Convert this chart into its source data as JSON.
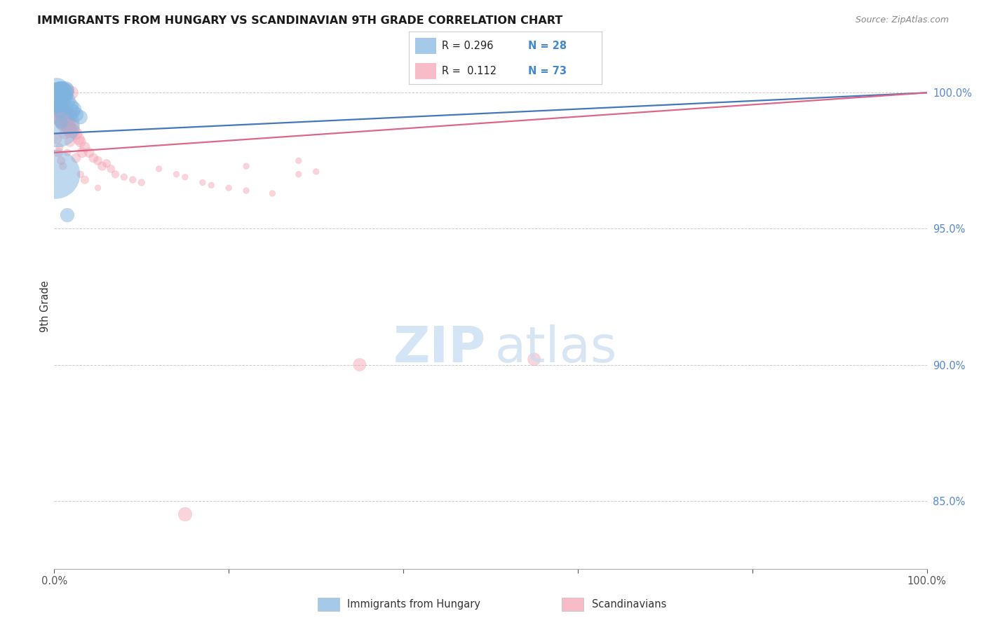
{
  "title": "IMMIGRANTS FROM HUNGARY VS SCANDINAVIAN 9TH GRADE CORRELATION CHART",
  "source": "Source: ZipAtlas.com",
  "ylabel": "9th Grade",
  "right_yticks": [
    85.0,
    90.0,
    95.0,
    100.0
  ],
  "xmin": 0.0,
  "xmax": 100.0,
  "ymin": 82.5,
  "ymax": 101.8,
  "blue_color": "#7EB3E0",
  "pink_color": "#F4A0B0",
  "blue_line_color": "#4477BB",
  "pink_line_color": "#DD6688",
  "blue_line_x": [
    0.0,
    100.0
  ],
  "blue_line_y": [
    98.5,
    100.0
  ],
  "pink_line_x": [
    0.0,
    100.0
  ],
  "pink_line_y": [
    97.8,
    100.0
  ],
  "hungary_points": [
    [
      0.2,
      99.8
    ],
    [
      0.3,
      100.1
    ],
    [
      0.4,
      100.0
    ],
    [
      0.5,
      99.9
    ],
    [
      0.6,
      100.0
    ],
    [
      0.7,
      100.1
    ],
    [
      0.8,
      100.0
    ],
    [
      0.9,
      100.1
    ],
    [
      1.0,
      99.9
    ],
    [
      1.1,
      99.8
    ],
    [
      1.2,
      100.0
    ],
    [
      1.3,
      100.1
    ],
    [
      1.5,
      99.7
    ],
    [
      1.8,
      99.5
    ],
    [
      2.0,
      99.3
    ],
    [
      2.2,
      99.4
    ],
    [
      2.5,
      99.2
    ],
    [
      3.0,
      99.1
    ],
    [
      0.15,
      99.6
    ],
    [
      0.25,
      99.9
    ],
    [
      0.35,
      100.1
    ],
    [
      0.5,
      99.5
    ],
    [
      0.6,
      99.8
    ],
    [
      0.7,
      99.3
    ],
    [
      0.4,
      98.8
    ],
    [
      0.8,
      98.9
    ],
    [
      1.5,
      95.5
    ],
    [
      0.15,
      97.0
    ]
  ],
  "hungary_sizes": [
    180,
    120,
    90,
    80,
    70,
    60,
    110,
    60,
    55,
    65,
    70,
    60,
    55,
    60,
    55,
    50,
    45,
    40,
    60,
    50,
    45,
    40,
    38,
    35,
    400,
    35,
    40,
    500
  ],
  "scand_points": [
    [
      0.3,
      99.8
    ],
    [
      0.5,
      99.5
    ],
    [
      0.6,
      99.6
    ],
    [
      0.7,
      99.4
    ],
    [
      0.8,
      99.3
    ],
    [
      0.9,
      99.2
    ],
    [
      1.0,
      99.1
    ],
    [
      1.1,
      99.0
    ],
    [
      1.2,
      98.9
    ],
    [
      1.3,
      99.2
    ],
    [
      1.4,
      99.1
    ],
    [
      1.5,
      99.0
    ],
    [
      1.6,
      98.8
    ],
    [
      1.7,
      98.7
    ],
    [
      1.8,
      98.6
    ],
    [
      2.0,
      98.8
    ],
    [
      2.2,
      98.6
    ],
    [
      2.5,
      98.5
    ],
    [
      2.8,
      98.3
    ],
    [
      3.0,
      98.2
    ],
    [
      3.2,
      97.8
    ],
    [
      3.5,
      98.0
    ],
    [
      4.0,
      97.8
    ],
    [
      4.5,
      97.6
    ],
    [
      5.0,
      97.5
    ],
    [
      5.5,
      97.3
    ],
    [
      6.0,
      97.4
    ],
    [
      6.5,
      97.2
    ],
    [
      7.0,
      97.0
    ],
    [
      8.0,
      96.9
    ],
    [
      9.0,
      96.8
    ],
    [
      10.0,
      96.7
    ],
    [
      12.0,
      97.2
    ],
    [
      14.0,
      97.0
    ],
    [
      15.0,
      96.9
    ],
    [
      17.0,
      96.7
    ],
    [
      18.0,
      96.6
    ],
    [
      20.0,
      96.5
    ],
    [
      22.0,
      96.4
    ],
    [
      25.0,
      96.3
    ],
    [
      28.0,
      97.0
    ],
    [
      30.0,
      97.1
    ],
    [
      22.0,
      97.3
    ],
    [
      28.0,
      97.5
    ],
    [
      0.4,
      100.1
    ],
    [
      0.5,
      100.0
    ],
    [
      0.6,
      99.9
    ],
    [
      0.7,
      100.0
    ],
    [
      0.8,
      100.1
    ],
    [
      1.0,
      99.9
    ],
    [
      1.5,
      100.1
    ],
    [
      2.0,
      100.0
    ],
    [
      0.2,
      99.5
    ],
    [
      0.3,
      99.7
    ],
    [
      0.4,
      99.3
    ],
    [
      0.5,
      99.0
    ],
    [
      1.2,
      98.5
    ],
    [
      1.8,
      98.2
    ],
    [
      2.5,
      97.6
    ],
    [
      3.5,
      96.8
    ],
    [
      0.3,
      98.3
    ],
    [
      0.5,
      97.8
    ],
    [
      0.8,
      97.5
    ],
    [
      1.0,
      97.3
    ],
    [
      35.0,
      90.0
    ],
    [
      55.0,
      90.2
    ],
    [
      15.0,
      84.5
    ],
    [
      0.6,
      98.0
    ],
    [
      1.5,
      97.8
    ],
    [
      3.0,
      97.0
    ],
    [
      5.0,
      96.5
    ],
    [
      0.9,
      98.9
    ],
    [
      0.4,
      99.6
    ],
    [
      0.7,
      99.8
    ]
  ],
  "scand_sizes": [
    70,
    65,
    60,
    58,
    55,
    52,
    85,
    80,
    75,
    65,
    60,
    55,
    50,
    46,
    42,
    42,
    38,
    32,
    28,
    25,
    22,
    22,
    20,
    18,
    16,
    16,
    14,
    13,
    12,
    10,
    10,
    10,
    8,
    8,
    8,
    8,
    8,
    8,
    8,
    8,
    8,
    8,
    8,
    8,
    55,
    50,
    48,
    46,
    44,
    40,
    38,
    35,
    35,
    32,
    30,
    28,
    25,
    22,
    18,
    14,
    20,
    18,
    14,
    12,
    35,
    35,
    40,
    12,
    10,
    10,
    8,
    8,
    8,
    8
  ],
  "background_color": "#FFFFFF",
  "grid_color": "#CCCCCC",
  "watermark_zip_color": "#D0E4F4",
  "watermark_atlas_color": "#C8DCF0"
}
